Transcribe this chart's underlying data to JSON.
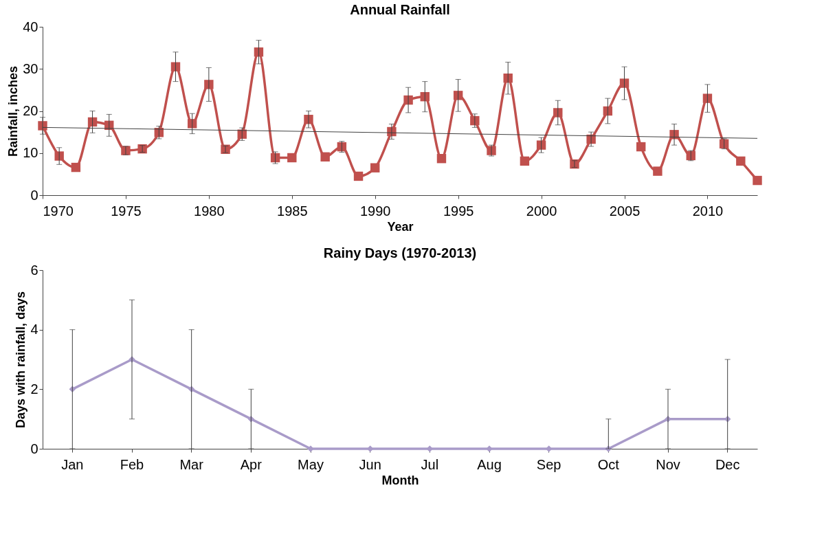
{
  "chart_data": [
    {
      "type": "line",
      "title": "Annual Rainfall",
      "xlabel": "Year",
      "ylabel": "Rainfall, inches",
      "xlim": [
        1970,
        2013
      ],
      "xticks": [
        1970,
        1975,
        1980,
        1985,
        1990,
        1995,
        2000,
        2005,
        2010
      ],
      "ylim": [
        0,
        40
      ],
      "yticks": [
        0,
        10,
        20,
        30,
        40
      ],
      "series": [
        {
          "color": "#c0504d",
          "marker": "square",
          "x": [
            1970,
            1971,
            1972,
            1973,
            1974,
            1975,
            1976,
            1977,
            1978,
            1979,
            1980,
            1981,
            1982,
            1983,
            1984,
            1985,
            1986,
            1987,
            1988,
            1989,
            1990,
            1991,
            1992,
            1993,
            1994,
            1995,
            1996,
            1997,
            1998,
            1999,
            2000,
            2001,
            2002,
            2003,
            2004,
            2005,
            2006,
            2007,
            2008,
            2009,
            2010,
            2011,
            2012,
            2013
          ],
          "values": [
            16.5,
            9.3,
            6.6,
            17.4,
            16.6,
            10.6,
            11.0,
            14.9,
            30.5,
            17.0,
            26.3,
            10.9,
            14.5,
            34.0,
            8.9,
            8.9,
            18.0,
            9.1,
            11.5,
            4.5,
            6.5,
            15.1,
            22.6,
            23.4,
            8.7,
            23.7,
            17.7,
            10.6,
            27.8,
            8.1,
            11.9,
            19.6,
            7.4,
            13.3,
            20.0,
            26.6,
            11.5,
            5.7,
            14.4,
            9.4,
            23.0,
            12.2,
            8.1,
            3.5
          ],
          "errors": [
            2,
            2,
            null,
            2.6,
            2.6,
            1,
            0.8,
            1.5,
            3.5,
            2.4,
            4,
            0.8,
            1.5,
            2.8,
            1.4,
            null,
            2,
            null,
            1.3,
            null,
            null,
            1.8,
            3,
            3.6,
            null,
            3.8,
            1.6,
            1.3,
            3.8,
            null,
            1.8,
            2.9,
            0.8,
            1.7,
            3,
            3.9,
            null,
            null,
            2.5,
            1.2,
            3.3,
            1.2,
            null,
            null
          ]
        },
        {
          "type": "line",
          "color": "#404040",
          "marker": "none",
          "x": [
            1970,
            2013
          ],
          "values": [
            16.1,
            13.5
          ]
        }
      ]
    },
    {
      "type": "line",
      "title": "Rainy Days (1970-2013)",
      "xlabel": "Month",
      "ylabel": "Days with rainfall, days",
      "categories": [
        "Jan",
        "Feb",
        "Mar",
        "Apr",
        "May",
        "Jun",
        "Jul",
        "Aug",
        "Sep",
        "Oct",
        "Nov",
        "Dec"
      ],
      "ylim": [
        0,
        6
      ],
      "yticks": [
        0,
        2,
        4,
        6
      ],
      "series": [
        {
          "color": "#a99bc9",
          "marker": "diamond",
          "values": [
            2,
            3,
            2,
            1,
            0,
            0,
            0,
            0,
            0,
            0,
            1,
            1
          ],
          "errors": [
            [
              0,
              4
            ],
            [
              1,
              5
            ],
            [
              0,
              4
            ],
            [
              0,
              2
            ],
            null,
            null,
            null,
            null,
            null,
            [
              0,
              1
            ],
            [
              0,
              2
            ],
            [
              0,
              3
            ]
          ]
        }
      ]
    }
  ]
}
